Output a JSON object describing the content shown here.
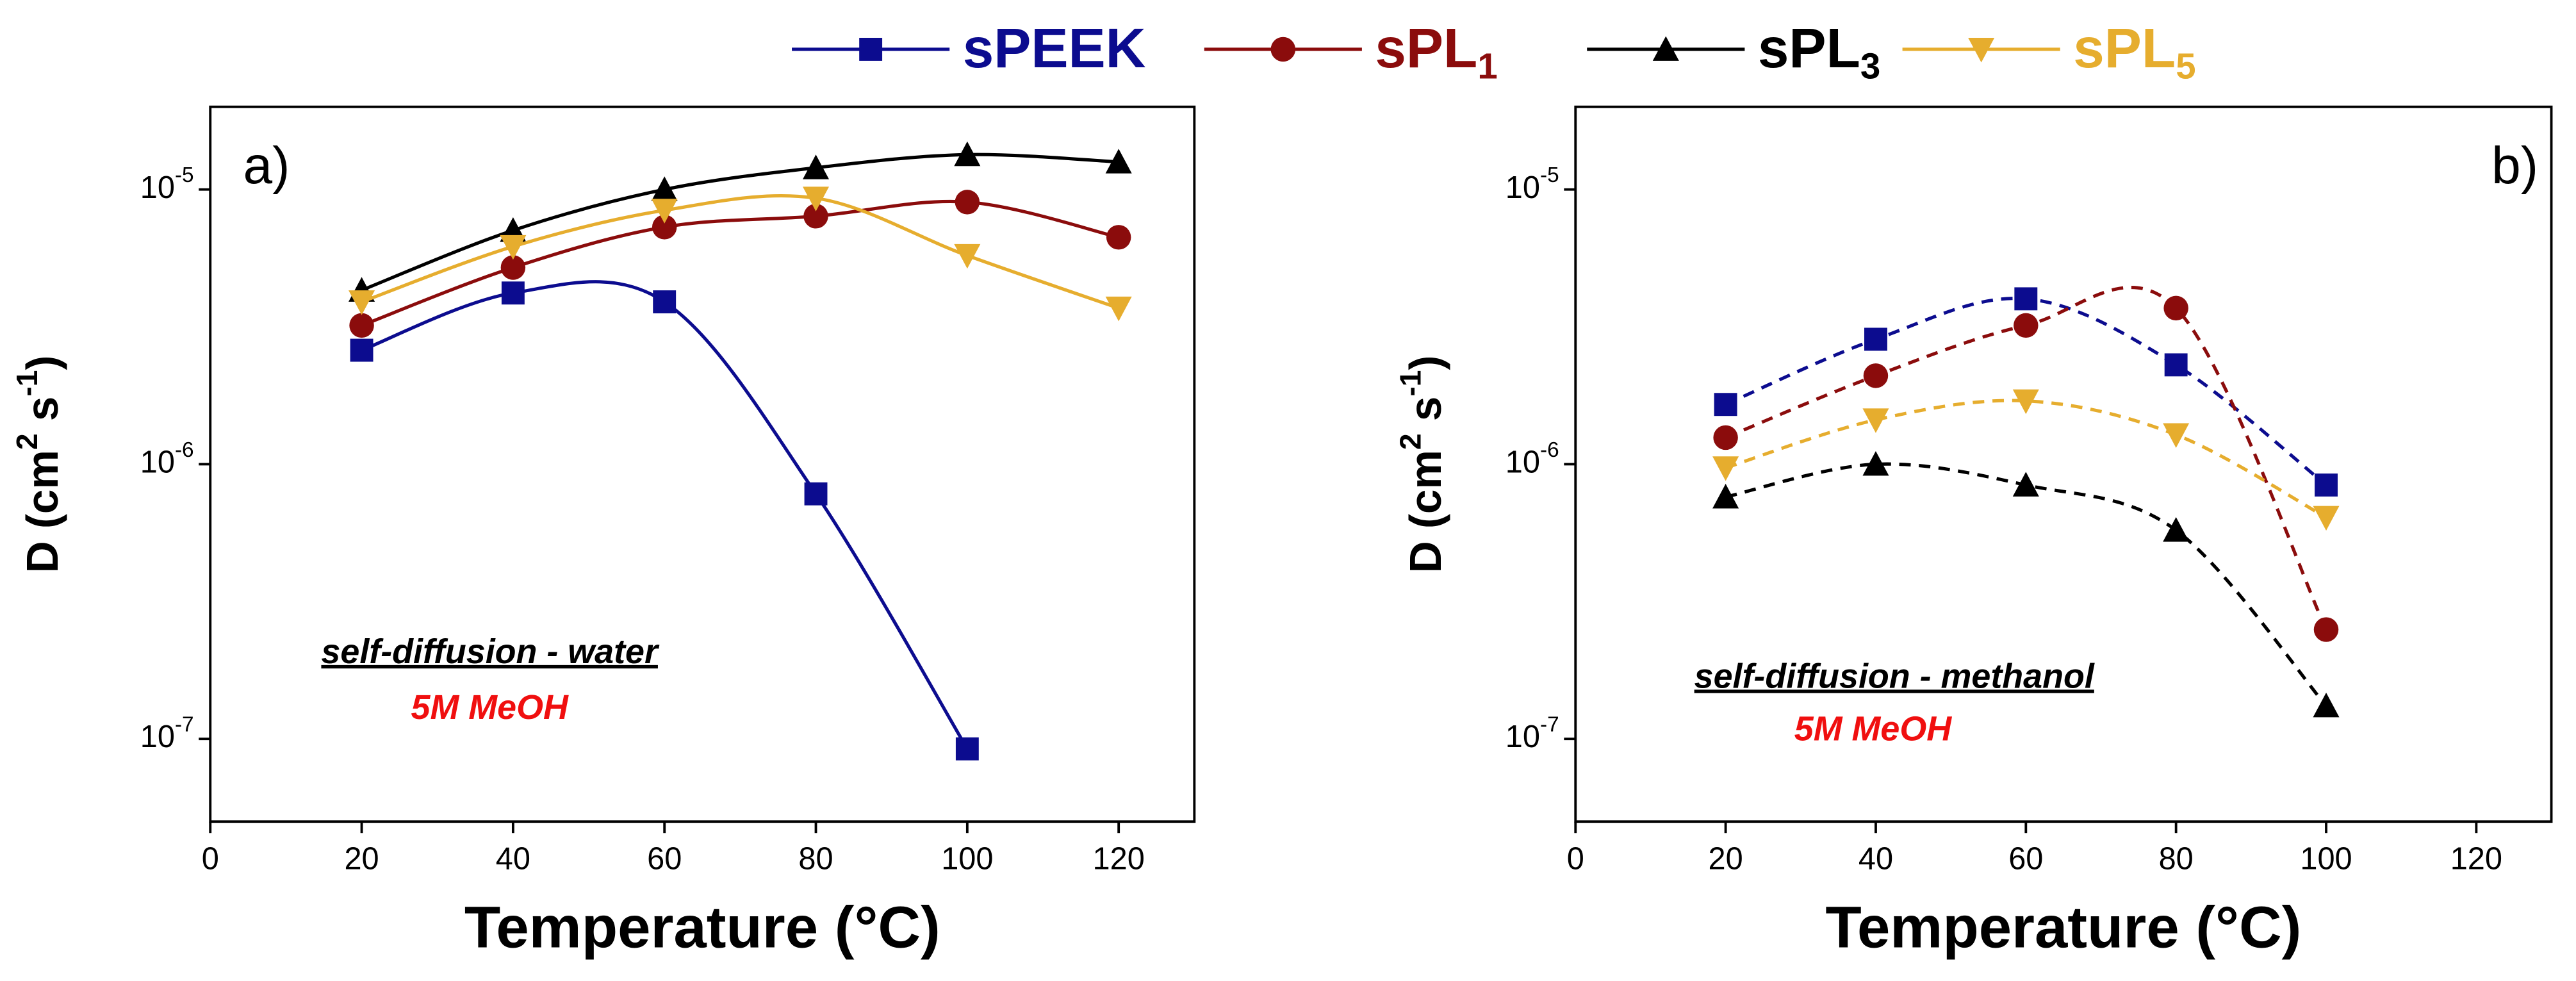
{
  "chart_data": [
    {
      "type": "line",
      "panel_label": "a)",
      "annotation": "self-diffusion - water",
      "condition": "5M MeOH",
      "xlabel": "Temperature (°C)",
      "ylabel": [
        "D  (cm",
        "2",
        " s",
        "-1",
        ")"
      ],
      "xlim": [
        0,
        130
      ],
      "xticks": [
        0,
        20,
        40,
        60,
        80,
        100,
        120
      ],
      "ylim": [
        5e-08,
        2e-05
      ],
      "log_y": true,
      "yticks": [
        {
          "value": 1e-07,
          "label": "10-7"
        },
        {
          "value": 1e-06,
          "label": "10-6"
        },
        {
          "value": 1e-05,
          "label": "10-5"
        }
      ],
      "line_style": "solid",
      "series": [
        {
          "name": "sPEEK",
          "color": "#0c0c8f",
          "marker": "square",
          "x": [
            20,
            40,
            60,
            80,
            100
          ],
          "values": [
            2.6e-06,
            4.2e-06,
            3.9e-06,
            7.8e-07,
            9.2e-08
          ]
        },
        {
          "name": "sPL1",
          "color": "#8b0c0c",
          "marker": "circle",
          "x": [
            20,
            40,
            60,
            80,
            100,
            120
          ],
          "values": [
            3.2e-06,
            5.2e-06,
            7.3e-06,
            8e-06,
            9e-06,
            6.7e-06
          ]
        },
        {
          "name": "sPL3",
          "color": "#000000",
          "marker": "triangle-up",
          "x": [
            20,
            40,
            60,
            80,
            100,
            120
          ],
          "values": [
            4.3e-06,
            7.1e-06,
            1e-05,
            1.2e-05,
            1.34e-05,
            1.26e-05
          ]
        },
        {
          "name": "sPL5",
          "color": "#e6ad2e",
          "marker": "triangle-down",
          "x": [
            20,
            40,
            60,
            80,
            100,
            120
          ],
          "values": [
            3.9e-06,
            6.2e-06,
            8.4e-06,
            9.3e-06,
            5.75e-06,
            3.7e-06
          ]
        }
      ]
    },
    {
      "type": "line",
      "panel_label": "b)",
      "annotation": "self-diffusion - methanol",
      "condition": "5M MeOH",
      "xlabel": "Temperature (°C)",
      "ylabel": [
        "D  (cm",
        "2",
        " s",
        "-1",
        ")"
      ],
      "xlim": [
        0,
        130
      ],
      "xticks": [
        0,
        20,
        40,
        60,
        80,
        100,
        120
      ],
      "ylim": [
        5e-08,
        2e-05
      ],
      "log_y": true,
      "yticks": [
        {
          "value": 1e-07,
          "label": "10-7"
        },
        {
          "value": 1e-06,
          "label": "10-6"
        },
        {
          "value": 1e-05,
          "label": "10-5"
        }
      ],
      "line_style": "dashed",
      "series": [
        {
          "color": "#0c0c8f",
          "marker": "square",
          "x": [
            20,
            40,
            60,
            80,
            100
          ],
          "values": [
            1.65e-06,
            2.85e-06,
            4e-06,
            2.3e-06,
            8.4e-07
          ]
        },
        {
          "color": "#8b0c0c",
          "marker": "circle",
          "x": [
            20,
            40,
            60,
            80,
            100
          ],
          "values": [
            1.25e-06,
            2.1e-06,
            3.2e-06,
            3.7e-06,
            2.5e-07
          ]
        },
        {
          "color": "#000000",
          "marker": "triangle-up",
          "x": [
            20,
            40,
            60,
            80,
            100
          ],
          "values": [
            7.6e-07,
            1e-06,
            8.4e-07,
            5.75e-07,
            1.32e-07
          ]
        },
        {
          "color": "#e6ad2e",
          "marker": "triangle-down",
          "x": [
            20,
            40,
            60,
            80,
            100
          ],
          "values": [
            9.7e-07,
            1.45e-06,
            1.7e-06,
            1.28e-06,
            6.4e-07
          ]
        }
      ]
    }
  ]
}
